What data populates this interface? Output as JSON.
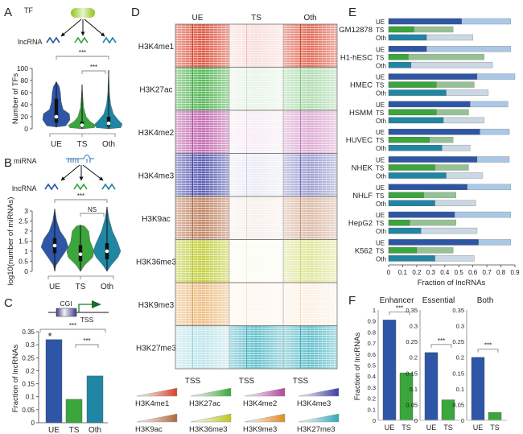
{
  "colors": {
    "UE": "#2d56a6",
    "TS": "#3aa63c",
    "Oth": "#1f86a4",
    "UE_light": "#a9c8e8",
    "TS_light": "#94c294",
    "Oth_light": "#c9d8e4"
  },
  "chart_data": [
    {
      "id": "A",
      "type": "violin",
      "letter": "A",
      "schematic": {
        "regulator": "TF",
        "target": "lncRNA"
      },
      "ylabel": "Number of TFs",
      "ylim": [
        0,
        100
      ],
      "yticks": [
        "0",
        "20",
        "40",
        "60",
        "80",
        "100"
      ],
      "categories": [
        "UE",
        "TS",
        "Oth"
      ],
      "series": [
        {
          "name": "UE",
          "median": 20,
          "q1": 10,
          "q3": 50,
          "min": 3,
          "max": 78,
          "density": [
            [
              3,
              0
            ],
            [
              5,
              0.7
            ],
            [
              15,
              1
            ],
            [
              25,
              0.95
            ],
            [
              32,
              0.5
            ],
            [
              45,
              0.35
            ],
            [
              60,
              0.3
            ],
            [
              70,
              0.22
            ],
            [
              78,
              0
            ]
          ]
        },
        {
          "name": "TS",
          "median": 6,
          "q1": 3,
          "q3": 12,
          "min": 0,
          "max": 73,
          "density": [
            [
              0,
              0
            ],
            [
              2,
              0.9
            ],
            [
              6,
              1
            ],
            [
              12,
              0.6
            ],
            [
              20,
              0.3
            ],
            [
              35,
              0.12
            ],
            [
              55,
              0.05
            ],
            [
              73,
              0
            ]
          ]
        },
        {
          "name": "Oth",
          "median": 9,
          "q1": 4,
          "q3": 20,
          "min": 0,
          "max": 97,
          "density": [
            [
              0,
              0
            ],
            [
              2,
              0.9
            ],
            [
              8,
              1
            ],
            [
              15,
              0.7
            ],
            [
              25,
              0.35
            ],
            [
              40,
              0.15
            ],
            [
              60,
              0.06
            ],
            [
              97,
              0
            ]
          ]
        }
      ],
      "significance": [
        {
          "pair": [
            "UE",
            "Oth"
          ],
          "label": "***"
        },
        {
          "pair": [
            "TS",
            "Oth"
          ],
          "label": "***"
        }
      ]
    },
    {
      "id": "B",
      "type": "violin",
      "letter": "B",
      "schematic": {
        "regulator": "miRNA",
        "target": "lncRNA"
      },
      "ylabel": "log10(number of miRNAs)",
      "ylim": [
        0,
        3
      ],
      "yticks": [
        "0",
        "0.5",
        "1",
        "1.5",
        "2",
        "2.5",
        "3"
      ],
      "categories": [
        "UE",
        "TS",
        "Oth"
      ],
      "series": [
        {
          "name": "UE",
          "median": 1.28,
          "q1": 0.9,
          "q3": 1.65,
          "min": 0,
          "max": 3.1,
          "density": [
            [
              0,
              0
            ],
            [
              0.3,
              0.1
            ],
            [
              0.8,
              0.6
            ],
            [
              1.2,
              1
            ],
            [
              1.6,
              0.8
            ],
            [
              2.0,
              0.4
            ],
            [
              2.5,
              0.15
            ],
            [
              3.1,
              0
            ]
          ]
        },
        {
          "name": "TS",
          "median": 0.85,
          "q1": 0.5,
          "q3": 1.3,
          "min": 0,
          "max": 2.3,
          "density": [
            [
              0,
              0
            ],
            [
              0.3,
              0.3
            ],
            [
              0.7,
              0.9
            ],
            [
              1.0,
              1
            ],
            [
              1.5,
              0.7
            ],
            [
              2.0,
              0.6
            ],
            [
              2.25,
              0.3
            ],
            [
              2.3,
              0
            ]
          ]
        },
        {
          "name": "Oth",
          "median": 1.0,
          "q1": 0.6,
          "q3": 1.4,
          "min": 0,
          "max": 3.2,
          "density": [
            [
              0,
              0
            ],
            [
              0.3,
              0.3
            ],
            [
              0.7,
              0.8
            ],
            [
              1.0,
              1
            ],
            [
              1.4,
              0.8
            ],
            [
              2.0,
              0.4
            ],
            [
              2.6,
              0.15
            ],
            [
              3.2,
              0
            ]
          ]
        }
      ],
      "significance": [
        {
          "pair": [
            "UE",
            "Oth"
          ],
          "label": "***"
        },
        {
          "pair": [
            "TS",
            "Oth"
          ],
          "label": "NS"
        }
      ]
    },
    {
      "id": "C",
      "type": "bar",
      "letter": "C",
      "schematic": {
        "cgi": "CGI",
        "tss": "TSS"
      },
      "ylabel": "Fraction of lncRNAs",
      "ylim": [
        0,
        0.35
      ],
      "yticks": [
        "0",
        "0.05",
        "0.1",
        "0.15",
        "0.2",
        "0.25",
        "0.3",
        "0.35"
      ],
      "categories": [
        "UE",
        "TS",
        "Oth"
      ],
      "values": [
        0.32,
        0.09,
        0.18
      ],
      "star": "*",
      "significance": [
        {
          "pair": [
            "UE",
            "Oth"
          ],
          "label": "***"
        },
        {
          "pair": [
            "TS",
            "Oth"
          ],
          "label": "***"
        }
      ]
    },
    {
      "id": "D",
      "type": "heatmap",
      "letter": "D",
      "columns": [
        "UE",
        "TS",
        "Oth"
      ],
      "tss_label": "TSS",
      "rows": [
        {
          "name": "H3K4me1",
          "color": "#d9432b",
          "intensity": [
            0.9,
            0.18,
            0.8
          ]
        },
        {
          "name": "H3K27ac",
          "color": "#3aa83a",
          "intensity": [
            0.85,
            0.12,
            0.4
          ]
        },
        {
          "name": "H3K4me2",
          "color": "#b2459c",
          "intensity": [
            0.8,
            0.1,
            0.45
          ]
        },
        {
          "name": "H3K4me3",
          "color": "#3b3fa3",
          "intensity": [
            0.85,
            0.1,
            0.5
          ]
        },
        {
          "name": "H3K9ac",
          "color": "#b0663c",
          "intensity": [
            0.8,
            0.1,
            0.45
          ]
        },
        {
          "name": "H3K36me3",
          "color": "#b9c71f",
          "intensity": [
            0.85,
            0.06,
            0.45
          ]
        },
        {
          "name": "H3K9me3",
          "color": "#e08a22",
          "intensity": [
            0.55,
            0.08,
            0.12
          ]
        },
        {
          "name": "H3K27me3",
          "color": "#2faabb",
          "intensity": [
            0.3,
            0.75,
            0.75
          ]
        }
      ]
    },
    {
      "id": "E",
      "type": "bar",
      "orientation": "horizontal",
      "letter": "E",
      "xlabel": "Fraction of lncRNAs",
      "xlim": [
        0,
        0.9
      ],
      "xticks": [
        "0",
        "0.1",
        "0.2",
        "0.3",
        "0.4",
        "0.5",
        "0.6",
        "0.7",
        "0.8",
        "0.9"
      ],
      "sub_categories": [
        "UE",
        "TS",
        "Oth"
      ],
      "groups": [
        {
          "name": "GM12878",
          "dark": [
            0.52,
            0.18,
            0.27
          ],
          "light": [
            0.87,
            0.46,
            0.6
          ]
        },
        {
          "name": "H1-hESC",
          "dark": [
            0.27,
            0.14,
            0.16
          ],
          "light": [
            0.87,
            0.68,
            0.74
          ]
        },
        {
          "name": "HMEC",
          "dark": [
            0.63,
            0.34,
            0.41
          ],
          "light": [
            0.9,
            0.61,
            0.71
          ]
        },
        {
          "name": "HSMM",
          "dark": [
            0.58,
            0.34,
            0.39
          ],
          "light": [
            0.85,
            0.57,
            0.68
          ]
        },
        {
          "name": "HUVEC",
          "dark": [
            0.65,
            0.29,
            0.38
          ],
          "light": [
            0.86,
            0.46,
            0.58
          ]
        },
        {
          "name": "NHEK",
          "dark": [
            0.63,
            0.33,
            0.41
          ],
          "light": [
            0.86,
            0.57,
            0.67
          ]
        },
        {
          "name": "NHLF",
          "dark": [
            0.56,
            0.25,
            0.33
          ],
          "light": [
            0.87,
            0.48,
            0.62
          ]
        },
        {
          "name": "HepG2",
          "dark": [
            0.47,
            0.15,
            0.23
          ],
          "light": [
            0.87,
            0.48,
            0.63
          ]
        },
        {
          "name": "K562",
          "dark": [
            0.64,
            0.2,
            0.33
          ],
          "light": [
            0.87,
            0.46,
            0.61
          ]
        }
      ]
    },
    {
      "id": "F",
      "type": "bar",
      "letter": "F",
      "ylabel": "Fraction of lncRNAs",
      "categories": [
        "UE",
        "TS"
      ],
      "subplots": [
        {
          "title": "Enhancer",
          "ylim": [
            0,
            1
          ],
          "yticks": [
            "0",
            "0.1",
            "0.2",
            "0.3",
            "0.4",
            "0.5",
            "0.6",
            "0.7",
            "0.8",
            "0.9",
            "1"
          ],
          "values": [
            0.91,
            0.43
          ],
          "sig": "***"
        },
        {
          "title": "Essential",
          "ylim": [
            0,
            0.35
          ],
          "yticks": [
            "0",
            "0.05",
            "0.1",
            "0.15",
            "0.2",
            "0.25",
            "0.3",
            "0.35"
          ],
          "values": [
            0.215,
            0.065
          ],
          "sig": "***"
        },
        {
          "title": "Both",
          "ylim": [
            0,
            0.35
          ],
          "yticks": [
            "0",
            "0.05",
            "0.1",
            "0.15",
            "0.2",
            "0.25",
            "0.3",
            "0.35"
          ],
          "values": [
            0.2,
            0.025
          ],
          "sig": "***"
        }
      ]
    }
  ]
}
